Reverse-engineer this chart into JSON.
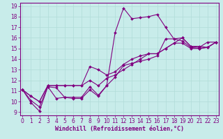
{
  "title": "",
  "xlabel": "Windchill (Refroidissement éolien,°C)",
  "ylabel": "",
  "bg_color": "#c8ecea",
  "plot_bg_color": "#c8ecea",
  "line_color": "#800080",
  "grid_color": "#b0dcd8",
  "axis_color": "#800080",
  "x_ticks": [
    0,
    1,
    2,
    3,
    4,
    5,
    6,
    7,
    8,
    9,
    10,
    11,
    12,
    13,
    14,
    15,
    16,
    17,
    18,
    19,
    20,
    21,
    22,
    23
  ],
  "y_ticks": [
    9,
    10,
    11,
    12,
    13,
    14,
    15,
    16,
    17,
    18,
    19
  ],
  "xlim": [
    -0.3,
    23.3
  ],
  "ylim": [
    8.7,
    19.3
  ],
  "series": [
    [
      11.1,
      9.9,
      9.1,
      11.4,
      10.3,
      10.4,
      10.3,
      10.3,
      11.1,
      10.5,
      11.5,
      16.5,
      18.8,
      17.8,
      17.9,
      18.0,
      18.2,
      17.0,
      15.9,
      16.0,
      15.2,
      15.1,
      15.6,
      15.6
    ],
    [
      11.1,
      10.1,
      9.5,
      11.4,
      11.3,
      10.4,
      10.4,
      10.4,
      11.4,
      10.6,
      11.5,
      12.3,
      13.4,
      13.6,
      13.8,
      14.0,
      14.3,
      15.9,
      15.9,
      15.7,
      15.1,
      15.0,
      15.1,
      15.6
    ],
    [
      11.1,
      10.5,
      10.0,
      11.5,
      11.5,
      11.5,
      11.5,
      11.5,
      12.0,
      11.5,
      12.2,
      12.5,
      13.0,
      13.5,
      14.0,
      14.5,
      14.5,
      15.0,
      15.5,
      15.5,
      15.0,
      15.0,
      15.1,
      15.6
    ],
    [
      11.1,
      10.5,
      10.0,
      11.5,
      11.5,
      11.5,
      11.5,
      11.5,
      13.3,
      13.0,
      12.5,
      12.8,
      13.5,
      14.0,
      14.3,
      14.5,
      14.5,
      15.0,
      15.5,
      16.0,
      15.2,
      15.2,
      15.1,
      15.6
    ]
  ],
  "tick_fontsize": 5.5,
  "xlabel_fontsize": 6.0,
  "marker_size": 2.0,
  "linewidth": 0.8
}
